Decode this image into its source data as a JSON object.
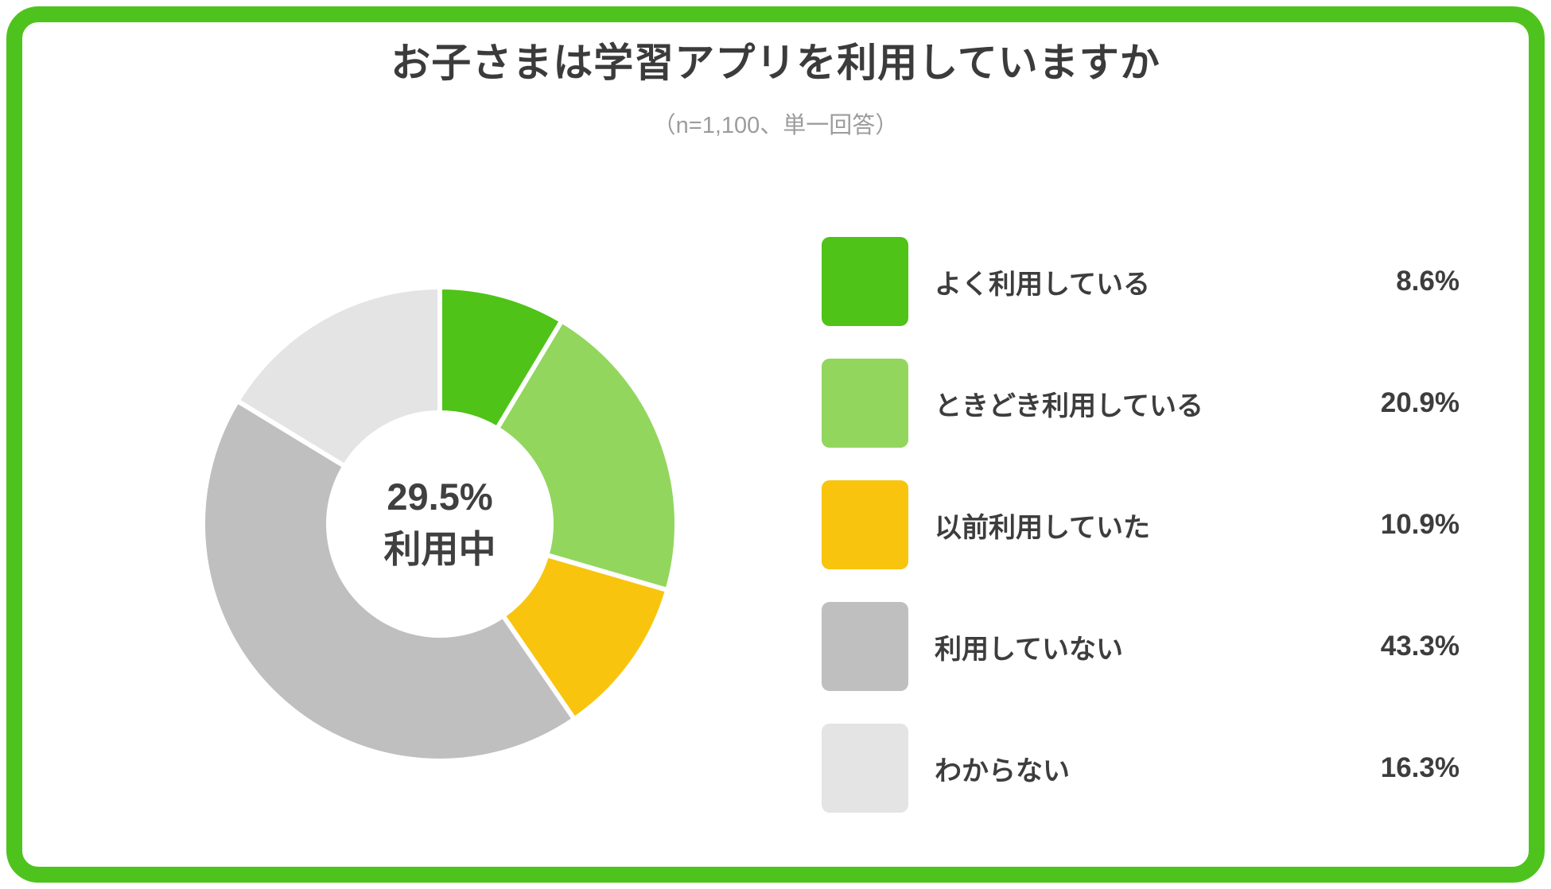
{
  "page": {
    "frame_color": "#4fc31d",
    "background_color": "#ffffff"
  },
  "header": {
    "title": "お子さまは学習アプリを利用していますか",
    "subtitle": "（n=1,100、単一回答）"
  },
  "donut": {
    "center_line1": "29.5%",
    "center_line2": "利用中",
    "text_color": "#404040"
  },
  "chart_data": {
    "type": "pie",
    "donut": true,
    "title": "お子さまは学習アプリを利用していますか",
    "subtitle": "（n=1,100、単一回答）",
    "sample_size": "n=1,100",
    "answer_type": "単一回答",
    "categories": [
      "よく利用している",
      "ときどき利用している",
      "以前利用していた",
      "利用していない",
      "わからない"
    ],
    "values": [
      8.6,
      20.9,
      10.9,
      43.3,
      16.3
    ],
    "value_labels": [
      "8.6%",
      "20.9%",
      "10.9%",
      "43.3%",
      "16.3%"
    ],
    "colors": [
      "#4fc317",
      "#92d65e",
      "#f8c40e",
      "#bfbfbf",
      "#e4e4e4"
    ],
    "center_label": "29.5% 利用中",
    "start_angle_deg": 0,
    "direction": "clockwise",
    "legend_position": "right",
    "slice_gap_color": "#ffffff"
  }
}
